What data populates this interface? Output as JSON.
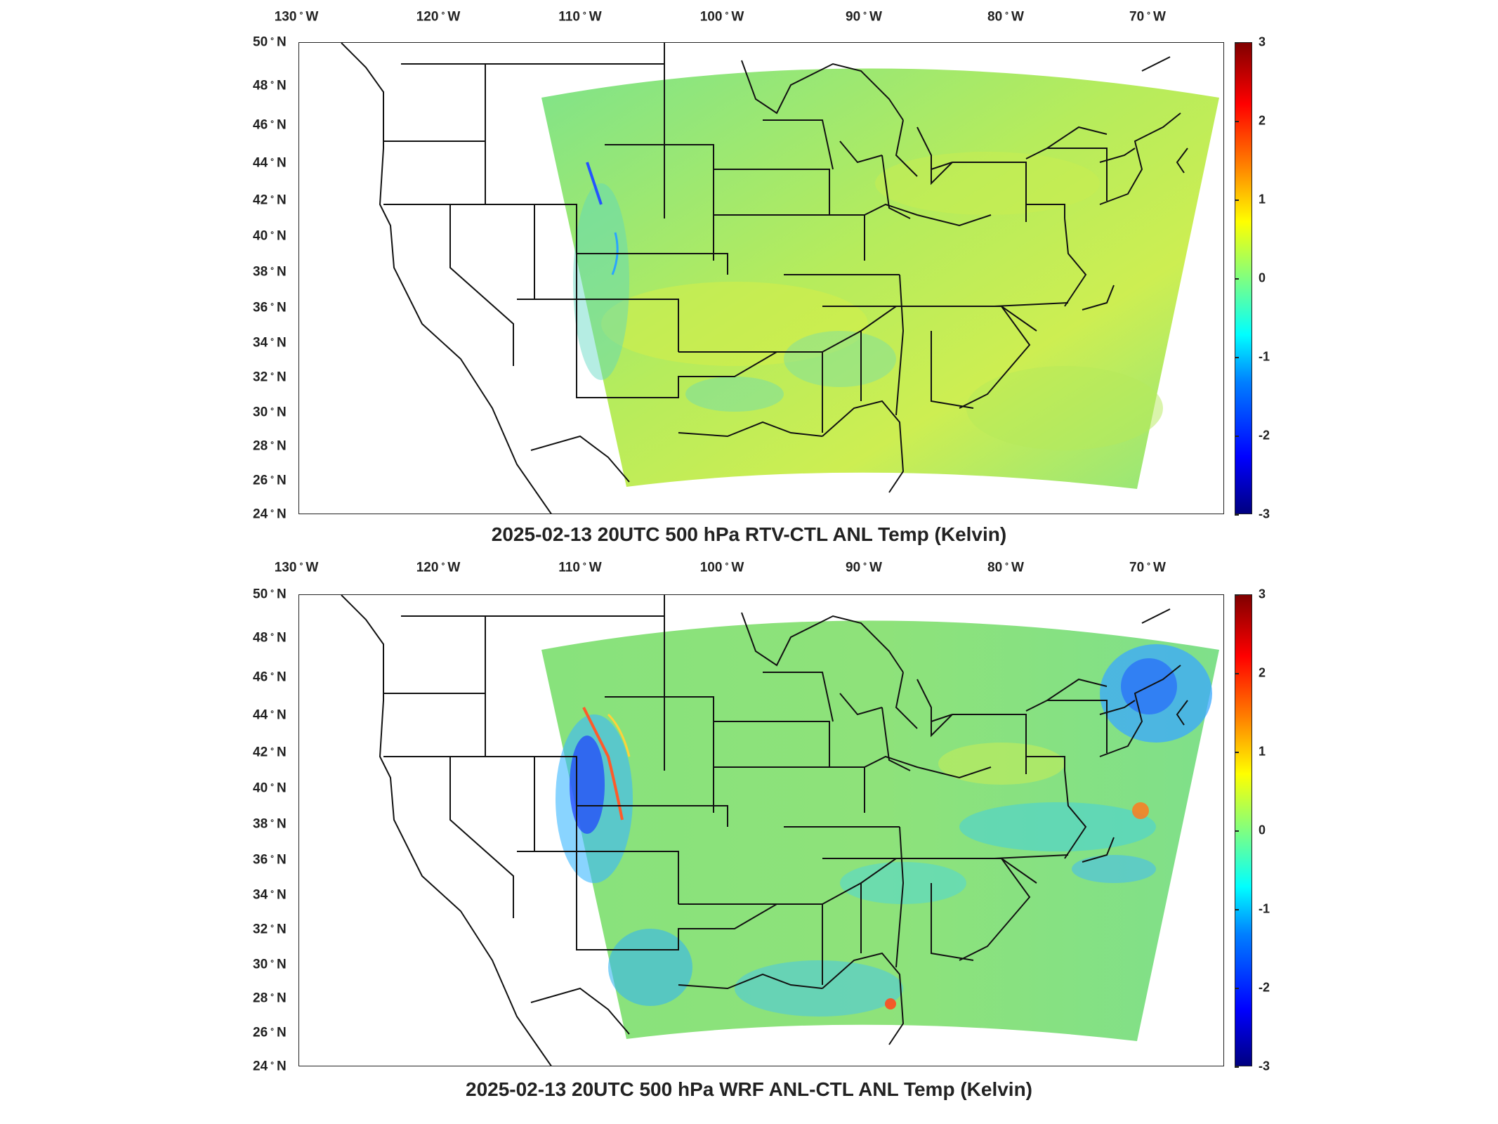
{
  "colors": {
    "field_base": "#86e07a",
    "field_warm": "#d9ef4e",
    "field_cool": "#4fd8c8",
    "field_cold": "#1e5aff",
    "field_hot": "#ff3b1e",
    "outline": "#111111"
  },
  "colorbar": {
    "colormap": "jet",
    "ticks": [
      "3",
      "2",
      "1",
      "0",
      "-1",
      "-2",
      "-3"
    ],
    "range": [
      -3,
      3
    ]
  },
  "axes": {
    "lon_labels": [
      "130",
      "120",
      "110",
      "100",
      "90",
      "80",
      "70"
    ],
    "lon_suffix": "W",
    "lat_labels": [
      "50",
      "48",
      "46",
      "44",
      "42",
      "40",
      "38",
      "36",
      "34",
      "32",
      "30",
      "28",
      "26",
      "24"
    ],
    "lat_suffix": "N"
  },
  "panels": [
    {
      "id": "top",
      "title": "2025-02-13 20UTC 500 hPa RTV-CTL ANL Temp (Kelvin)",
      "description_colors": "mostly green-yellow, slight warm anomalies"
    },
    {
      "id": "bottom",
      "title": "2025-02-13 20UTC 500 hPa WRF ANL-CTL ANL Temp (Kelvin)",
      "description_colors": "green with cold anomalies over Rockies and New England"
    }
  ]
}
